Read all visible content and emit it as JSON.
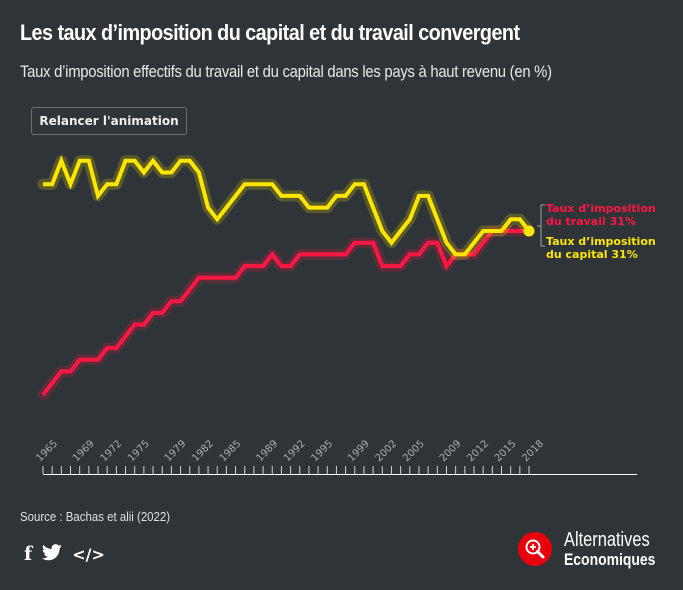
{
  "header": {
    "title": "Les taux d’imposition du capital et du travail convergent",
    "subtitle": "Taux d’imposition effectifs du travail et du capital dans les pays à haut revenu (en %)"
  },
  "controls": {
    "replay_label": "Relancer l'animation"
  },
  "footer": {
    "source": "Source : Bachas et alii (2022)",
    "social": [
      {
        "name": "facebook-icon",
        "glyph": "f"
      },
      {
        "name": "twitter-icon",
        "glyph": "🐦"
      },
      {
        "name": "embed-icon",
        "glyph": "</>"
      }
    ],
    "logo_line1": "Alternatives",
    "logo_line2": "Economiques"
  },
  "colors": {
    "background": "#2e3437",
    "labour": "#ff1744",
    "capital": "#ffe600",
    "axis": "#ffffff",
    "tick_label": "#a8adb0",
    "logo_red": "#e8000b"
  },
  "chart_data": {
    "type": "line",
    "title": "Les taux d’imposition du capital et du travail convergent",
    "subtitle": "Taux d’imposition effectifs du travail et du capital dans les pays à haut revenu (en %)",
    "xlabel": "",
    "ylabel": "",
    "x": [
      1965,
      1966,
      1967,
      1968,
      1969,
      1970,
      1971,
      1972,
      1973,
      1974,
      1975,
      1976,
      1977,
      1978,
      1979,
      1980,
      1981,
      1982,
      1983,
      1984,
      1985,
      1986,
      1987,
      1988,
      1989,
      1990,
      1991,
      1992,
      1993,
      1994,
      1995,
      1996,
      1997,
      1998,
      1999,
      2000,
      2001,
      2002,
      2003,
      2004,
      2005,
      2006,
      2007,
      2008,
      2009,
      2010,
      2011,
      2012,
      2013,
      2014,
      2015,
      2016,
      2017,
      2018
    ],
    "xlim": [
      1965,
      2018
    ],
    "ylim": [
      14,
      39
    ],
    "x_tick_labels": [
      "1965",
      "1969",
      "1972",
      "1975",
      "1979",
      "1982",
      "1985",
      "1989",
      "1992",
      "1995",
      "1999",
      "2002",
      "2005",
      "2009",
      "2012",
      "2015",
      "2018"
    ],
    "grid": false,
    "y_axis_visible": false,
    "series": [
      {
        "name": "Taux d’imposition du travail",
        "end_label_line1": "Taux d’imposition",
        "end_label_line2": "du travail 31%",
        "color": "#ff1744",
        "values": [
          17,
          18,
          19,
          19,
          20,
          20,
          20,
          21,
          21,
          22,
          23,
          23,
          24,
          24,
          25,
          25,
          26,
          27,
          27,
          27,
          27,
          27,
          28,
          28,
          28,
          29,
          28,
          28,
          29,
          29,
          29,
          29,
          29,
          29,
          30,
          30,
          30,
          28,
          28,
          28,
          29,
          29,
          30,
          30,
          28,
          29,
          29,
          29,
          30,
          31,
          31,
          31,
          31,
          31
        ]
      },
      {
        "name": "Taux d’imposition du capital",
        "end_label_line1": "Taux d’imposition",
        "end_label_line2": "du capital 31%",
        "color": "#ffe600",
        "values": [
          35,
          35,
          37,
          35,
          37,
          37,
          34,
          35,
          35,
          37,
          37,
          36,
          37,
          36,
          36,
          37,
          37,
          36,
          33,
          32,
          33,
          34,
          35,
          35,
          35,
          35,
          34,
          34,
          34,
          33,
          33,
          33,
          34,
          34,
          35,
          35,
          33,
          31,
          30,
          31,
          32,
          34,
          34,
          32,
          30,
          29,
          29,
          30,
          31,
          31,
          31,
          32,
          32,
          31
        ]
      }
    ]
  }
}
